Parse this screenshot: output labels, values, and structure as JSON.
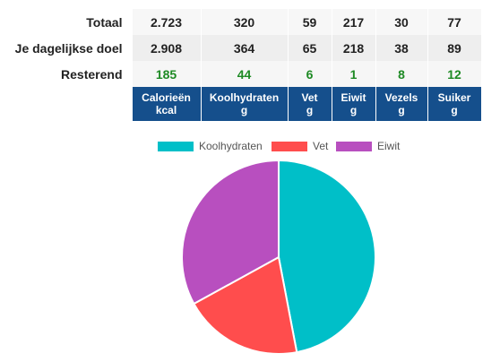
{
  "summary": {
    "rows": [
      {
        "label": "Totaal",
        "values": [
          "2.723",
          "320",
          "59",
          "217",
          "30",
          "77"
        ]
      },
      {
        "label": "Je dagelijkse doel",
        "values": [
          "2.908",
          "364",
          "65",
          "218",
          "38",
          "89"
        ]
      },
      {
        "label": "Resterend",
        "values": [
          "185",
          "44",
          "6",
          "1",
          "8",
          "12"
        ]
      }
    ],
    "columns": [
      {
        "name": "Calorieën",
        "unit": "kcal"
      },
      {
        "name": "Koolhydraten",
        "unit": "g"
      },
      {
        "name": "Vet",
        "unit": "g"
      },
      {
        "name": "Eiwit",
        "unit": "g"
      },
      {
        "name": "Vezels",
        "unit": "g"
      },
      {
        "name": "Suiker",
        "unit": "g"
      }
    ],
    "colors": {
      "header_bg": "#154f8c",
      "remaining_text": "#1e8a24"
    }
  },
  "legend": [
    {
      "name": "Koolhydraten",
      "color": "#00bfc8"
    },
    {
      "name": "Vet",
      "color": "#ff4d4d"
    },
    {
      "name": "Eiwit",
      "color": "#b84fbf"
    }
  ],
  "chart_data": {
    "type": "pie",
    "categories": [
      "Koolhydraten",
      "Vet",
      "Eiwit"
    ],
    "values": [
      47,
      20,
      33
    ],
    "colors": [
      "#00bfc8",
      "#ff4d4d",
      "#b84fbf"
    ],
    "legend_position": "top"
  }
}
